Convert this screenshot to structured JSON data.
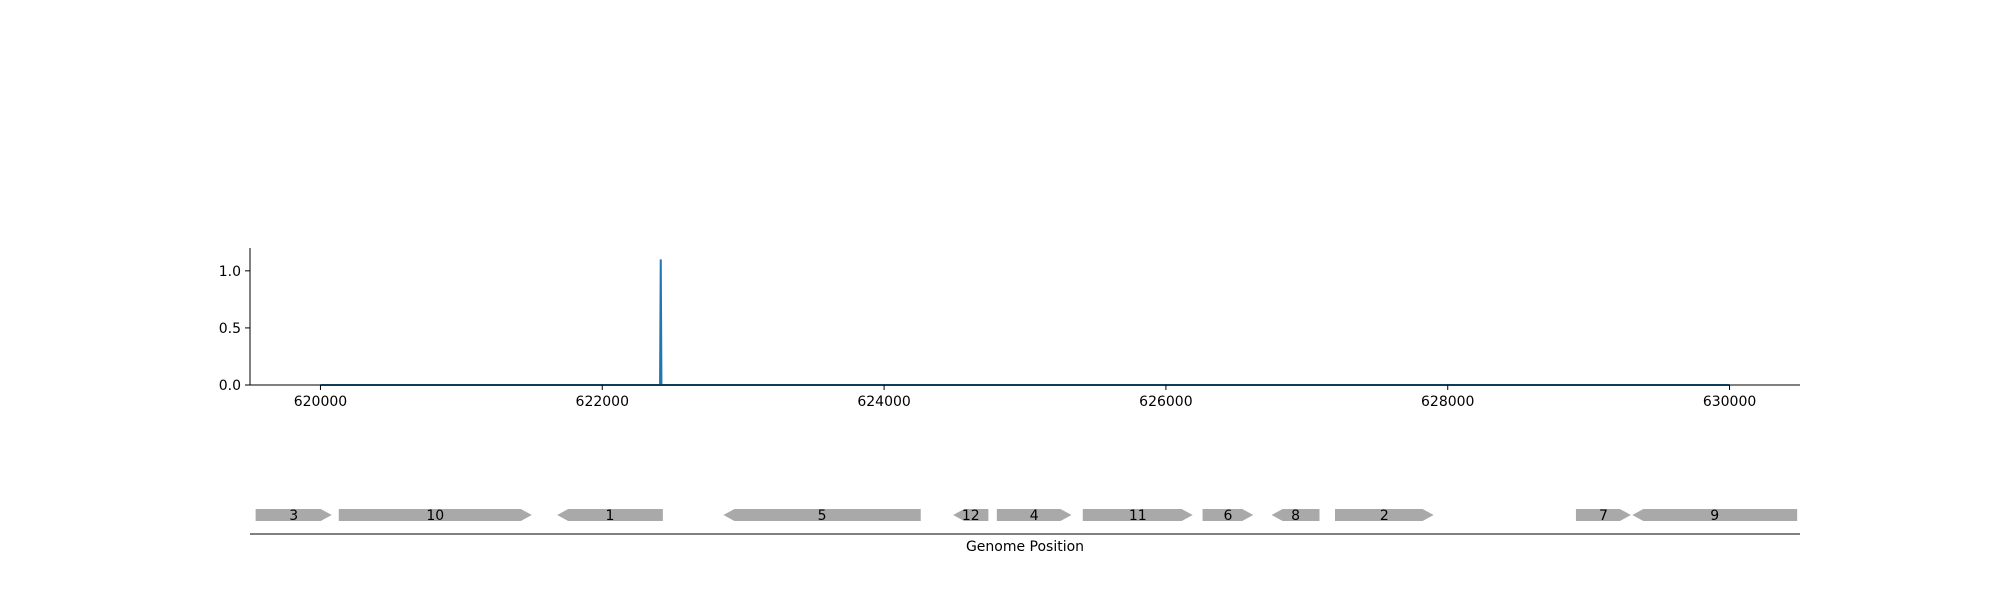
{
  "chart_data": {
    "type": "line",
    "title": "",
    "xlabel": "",
    "ylabel": "",
    "xlim": [
      619500,
      630500
    ],
    "ylim": [
      0,
      1.2
    ],
    "xticks": [
      620000,
      622000,
      624000,
      626000,
      628000,
      630000
    ],
    "xtick_labels": [
      "620000",
      "622000",
      "624000",
      "626000",
      "628000",
      "630000"
    ],
    "yticks": [
      0.0,
      0.5,
      1.0
    ],
    "ytick_labels": [
      "0.0",
      "0.5",
      "1.0"
    ],
    "grid": false,
    "series": [
      {
        "color": "#1f77b4",
        "x": [
          620000,
          622410,
          622415,
          622420,
          630000
        ],
        "y": [
          0,
          0,
          1.1,
          0,
          0
        ]
      }
    ],
    "gene_track": {
      "xlabel": "Genome Position",
      "color": "#a9a9a9",
      "genes": [
        {
          "label": "3",
          "start": 619540,
          "end": 620080,
          "strand": 1
        },
        {
          "label": "10",
          "start": 620130,
          "end": 621500,
          "strand": 1
        },
        {
          "label": "1",
          "start": 621680,
          "end": 622430,
          "strand": -1
        },
        {
          "label": "5",
          "start": 622860,
          "end": 624260,
          "strand": -1
        },
        {
          "label": "12",
          "start": 624490,
          "end": 624740,
          "strand": -1
        },
        {
          "label": "4",
          "start": 624800,
          "end": 625330,
          "strand": 1
        },
        {
          "label": "11",
          "start": 625410,
          "end": 626190,
          "strand": 1
        },
        {
          "label": "6",
          "start": 626260,
          "end": 626620,
          "strand": 1
        },
        {
          "label": "8",
          "start": 626750,
          "end": 627090,
          "strand": -1
        },
        {
          "label": "2",
          "start": 627200,
          "end": 627900,
          "strand": 1
        },
        {
          "label": "7",
          "start": 628910,
          "end": 629300,
          "strand": 1
        },
        {
          "label": "9",
          "start": 629310,
          "end": 630480,
          "strand": -1
        }
      ]
    }
  }
}
